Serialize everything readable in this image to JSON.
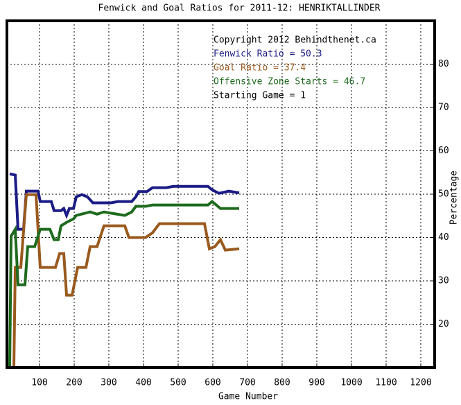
{
  "chart_data": {
    "type": "line",
    "title": "Fenwick and Goal Ratios for 2011-12: HENRIKTALLINDER",
    "xlabel": "Game Number",
    "ylabel": "Percentage",
    "annotations": [
      {
        "text": "Copyright 2012 Behindthenet.ca",
        "color": "#000000"
      },
      {
        "text": "Starting Game = 1",
        "color": "#000000"
      }
    ],
    "xlim": [
      6,
      1240
    ],
    "ylim": [
      10,
      90
    ],
    "xticks": [
      100,
      200,
      300,
      400,
      500,
      600,
      700,
      800,
      900,
      1000,
      1100,
      1200
    ],
    "yticks": [
      20,
      30,
      40,
      50,
      60,
      70,
      80
    ],
    "grid": true,
    "series": [
      {
        "name": "Fenwick Ratio = 50.3",
        "color": "#1c1c86",
        "x": [
          14,
          30,
          38,
          54,
          62,
          96,
          102,
          134,
          142,
          162,
          170,
          178,
          186,
          198,
          206,
          222,
          238,
          254,
          306,
          326,
          366,
          378,
          386,
          410,
          426,
          466,
          486,
          586,
          598,
          618,
          646,
          676
        ],
        "values": [
          54.7,
          54.4,
          41.9,
          41.9,
          50.7,
          50.7,
          48.3,
          48.3,
          46.2,
          46.2,
          46.7,
          45.1,
          46.7,
          46.7,
          49.4,
          49.9,
          49.4,
          48.0,
          48.0,
          48.3,
          48.3,
          49.4,
          50.6,
          50.6,
          51.5,
          51.5,
          51.8,
          51.8,
          51.0,
          50.2,
          50.7,
          50.3
        ]
      },
      {
        "name": "Goal Ratio = 37.4",
        "color": "#9a5a1e",
        "x": [
          26,
          30,
          46,
          62,
          90,
          102,
          146,
          158,
          170,
          178,
          194,
          202,
          210,
          234,
          246,
          266,
          286,
          346,
          358,
          406,
          426,
          446,
          576,
          590,
          606,
          622,
          636,
          676
        ],
        "values": [
          10,
          33.1,
          33.1,
          49.9,
          49.9,
          33.1,
          33.1,
          36.3,
          36.3,
          26.7,
          26.7,
          29.9,
          33.1,
          33.1,
          37.9,
          37.9,
          42.7,
          42.7,
          40.0,
          40.0,
          41.1,
          43.2,
          43.2,
          37.4,
          37.9,
          39.5,
          37.1,
          37.4
        ]
      },
      {
        "name": "Offensive Zone Starts = 46.7",
        "color": "#1e6b1e",
        "x": [
          14,
          18,
          30,
          38,
          58,
          66,
          86,
          102,
          130,
          142,
          154,
          162,
          178,
          198,
          206,
          246,
          266,
          286,
          346,
          366,
          378,
          406,
          426,
          586,
          598,
          622,
          676
        ],
        "values": [
          10,
          40.3,
          41.9,
          29.1,
          29.1,
          37.9,
          37.9,
          41.9,
          41.9,
          39.5,
          39.5,
          42.7,
          43.5,
          44.3,
          45.1,
          45.9,
          45.4,
          45.9,
          45.1,
          45.9,
          47.2,
          47.2,
          47.5,
          47.5,
          48.3,
          46.7,
          46.7
        ]
      }
    ]
  }
}
